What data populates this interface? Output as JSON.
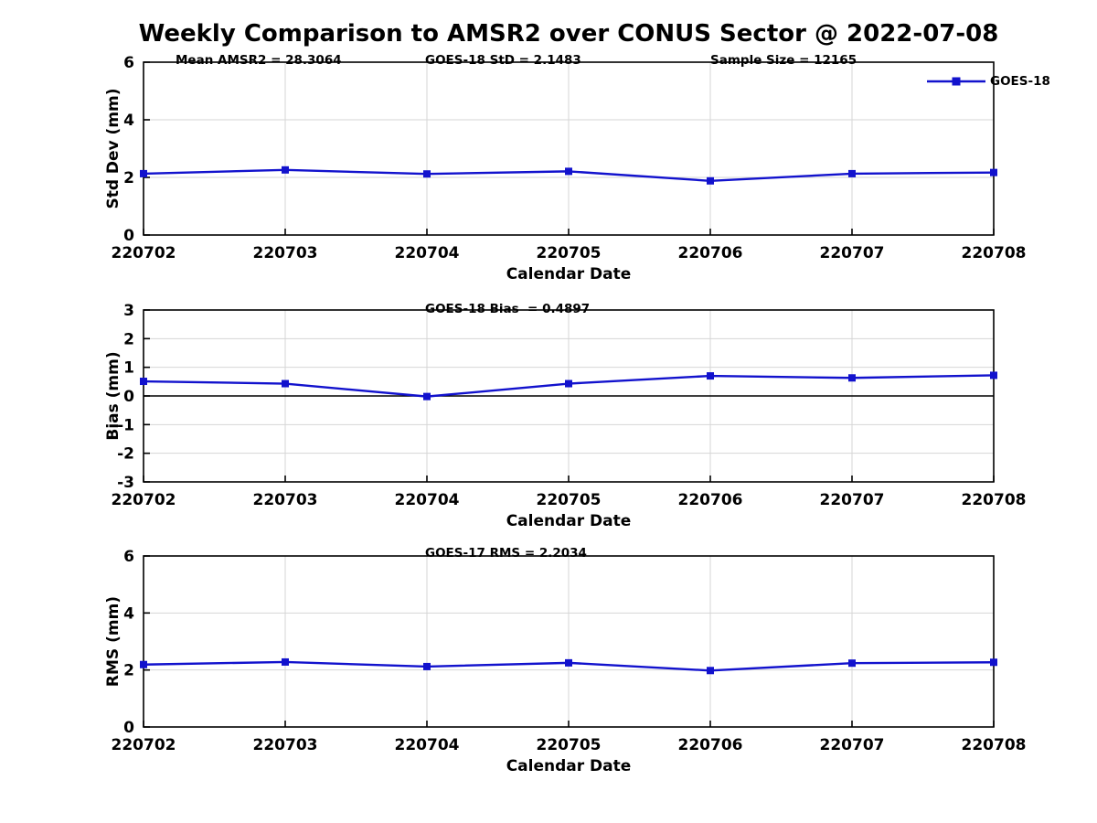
{
  "figure": {
    "title": "Weekly Comparison to AMSR2 over CONUS Sector @ 2022-07-08",
    "legend": {
      "label": "GOES-18",
      "marker": "filled-square",
      "line_color": "#1212cd"
    },
    "colors": {
      "line": "#1212cd",
      "grid": "#d6d6d6",
      "axis": "#000000",
      "zero_line": "#000000",
      "text": "#000000"
    }
  },
  "annotations": {
    "mean_amsr2": "Mean AMSR2 = 28.3064",
    "goes18_std": "GOES-18 StD = 2.1483",
    "sample_size": "Sample Size = 12165",
    "goes18_bias": "GOES-18 Bias  = 0.4897",
    "goes17_rms": "GOES-17 RMS = 2.2034"
  },
  "chart_data": [
    {
      "type": "line",
      "panel": "std-dev",
      "categories": [
        "220702",
        "220703",
        "220704",
        "220705",
        "220706",
        "220707",
        "220708"
      ],
      "series": [
        {
          "name": "GOES-18",
          "values": [
            2.13,
            2.26,
            2.12,
            2.21,
            1.88,
            2.13,
            2.17
          ]
        }
      ],
      "xlabel": "Calendar Date",
      "ylabel": "Std Dev (mm)",
      "ylim": [
        0,
        6
      ],
      "yticks": [
        0,
        2,
        4,
        6
      ],
      "grid": true,
      "zero_line": false,
      "legend_position": "top-right-outside",
      "annotations": [
        "Mean AMSR2 = 28.3064",
        "GOES-18 StD = 2.1483",
        "Sample Size = 12165"
      ]
    },
    {
      "type": "line",
      "panel": "bias",
      "categories": [
        "220702",
        "220703",
        "220704",
        "220705",
        "220706",
        "220707",
        "220708"
      ],
      "series": [
        {
          "name": "GOES-18",
          "values": [
            0.51,
            0.43,
            -0.02,
            0.43,
            0.7,
            0.63,
            0.72
          ]
        }
      ],
      "xlabel": "Calendar Date",
      "ylabel": "Bias (mm)",
      "ylim": [
        -3,
        3
      ],
      "yticks": [
        -3,
        -2,
        -1,
        0,
        1,
        2,
        3
      ],
      "grid": true,
      "zero_line": true,
      "annotations": [
        "GOES-18 Bias  = 0.4897"
      ]
    },
    {
      "type": "line",
      "panel": "rms",
      "categories": [
        "220702",
        "220703",
        "220704",
        "220705",
        "220706",
        "220707",
        "220708"
      ],
      "series": [
        {
          "name": "GOES-18",
          "values": [
            2.19,
            2.28,
            2.12,
            2.25,
            1.98,
            2.24,
            2.27
          ]
        }
      ],
      "xlabel": "Calendar Date",
      "ylabel": "RMS (mm)",
      "ylim": [
        0,
        6
      ],
      "yticks": [
        0,
        2,
        4,
        6
      ],
      "grid": true,
      "zero_line": false,
      "annotations": [
        "GOES-17 RMS = 2.2034"
      ]
    }
  ]
}
